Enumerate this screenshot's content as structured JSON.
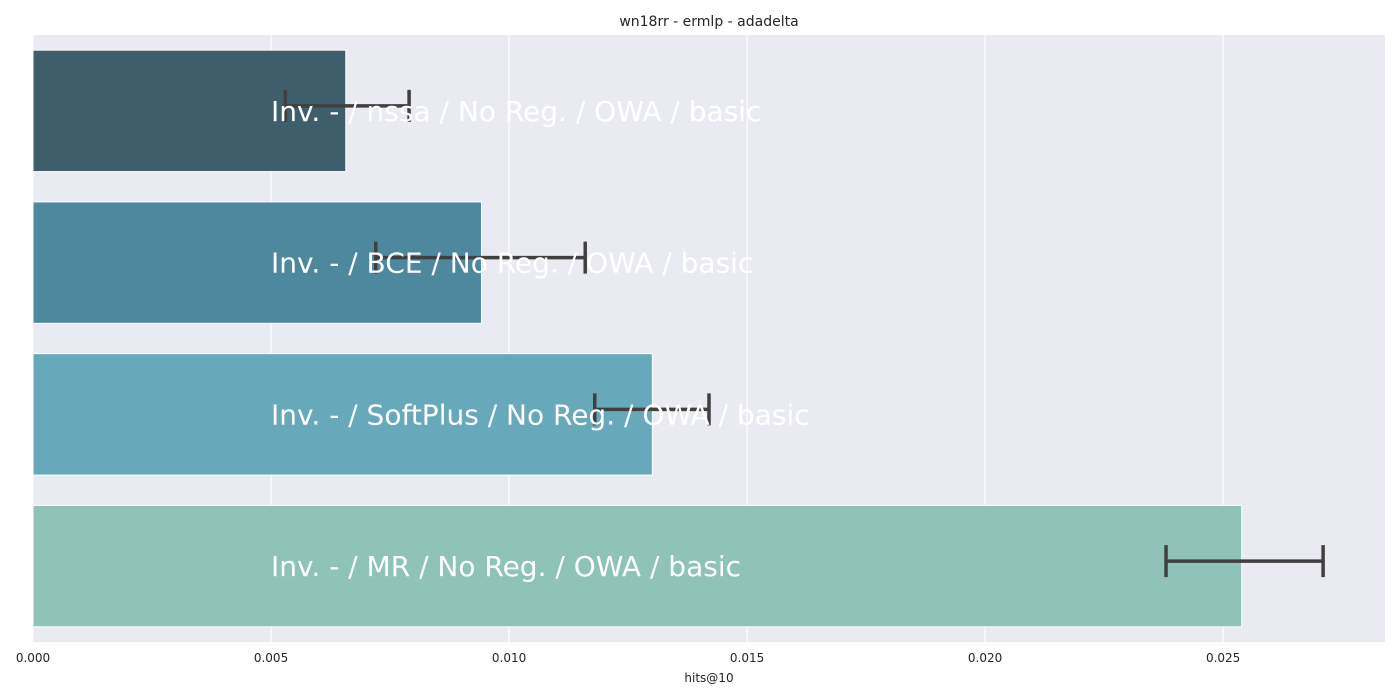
{
  "chart_data": {
    "type": "bar",
    "orientation": "horizontal",
    "title": "wn18rr - ermlp - adadelta",
    "xlabel": "hits@10",
    "ylabel": "",
    "xlim": [
      0,
      0.0284
    ],
    "xticks": [
      "0.000",
      "0.005",
      "0.010",
      "0.015",
      "0.020",
      "0.025"
    ],
    "grid": true,
    "background": "#eaeaf2",
    "bars": [
      {
        "label": "Inv. - / nssa / No Reg. / OWA / basic",
        "value": 0.00657,
        "err_low": 0.0053,
        "err_high": 0.0079,
        "color": "#3f5e6b"
      },
      {
        "label": "Inv. - / BCE / No Reg. / OWA / basic",
        "value": 0.00942,
        "err_low": 0.0072,
        "err_high": 0.0116,
        "color": "#4d889f"
      },
      {
        "label": "Inv. - / SoftPlus / No Reg. / OWA / basic",
        "value": 0.01301,
        "err_low": 0.0118,
        "err_high": 0.0142,
        "color": "#67a9ba"
      },
      {
        "label": "Inv. - / MR / No Reg. / OWA / basic",
        "value": 0.02539,
        "err_low": 0.0238,
        "err_high": 0.0271,
        "color": "#8fc2b8"
      }
    ]
  }
}
